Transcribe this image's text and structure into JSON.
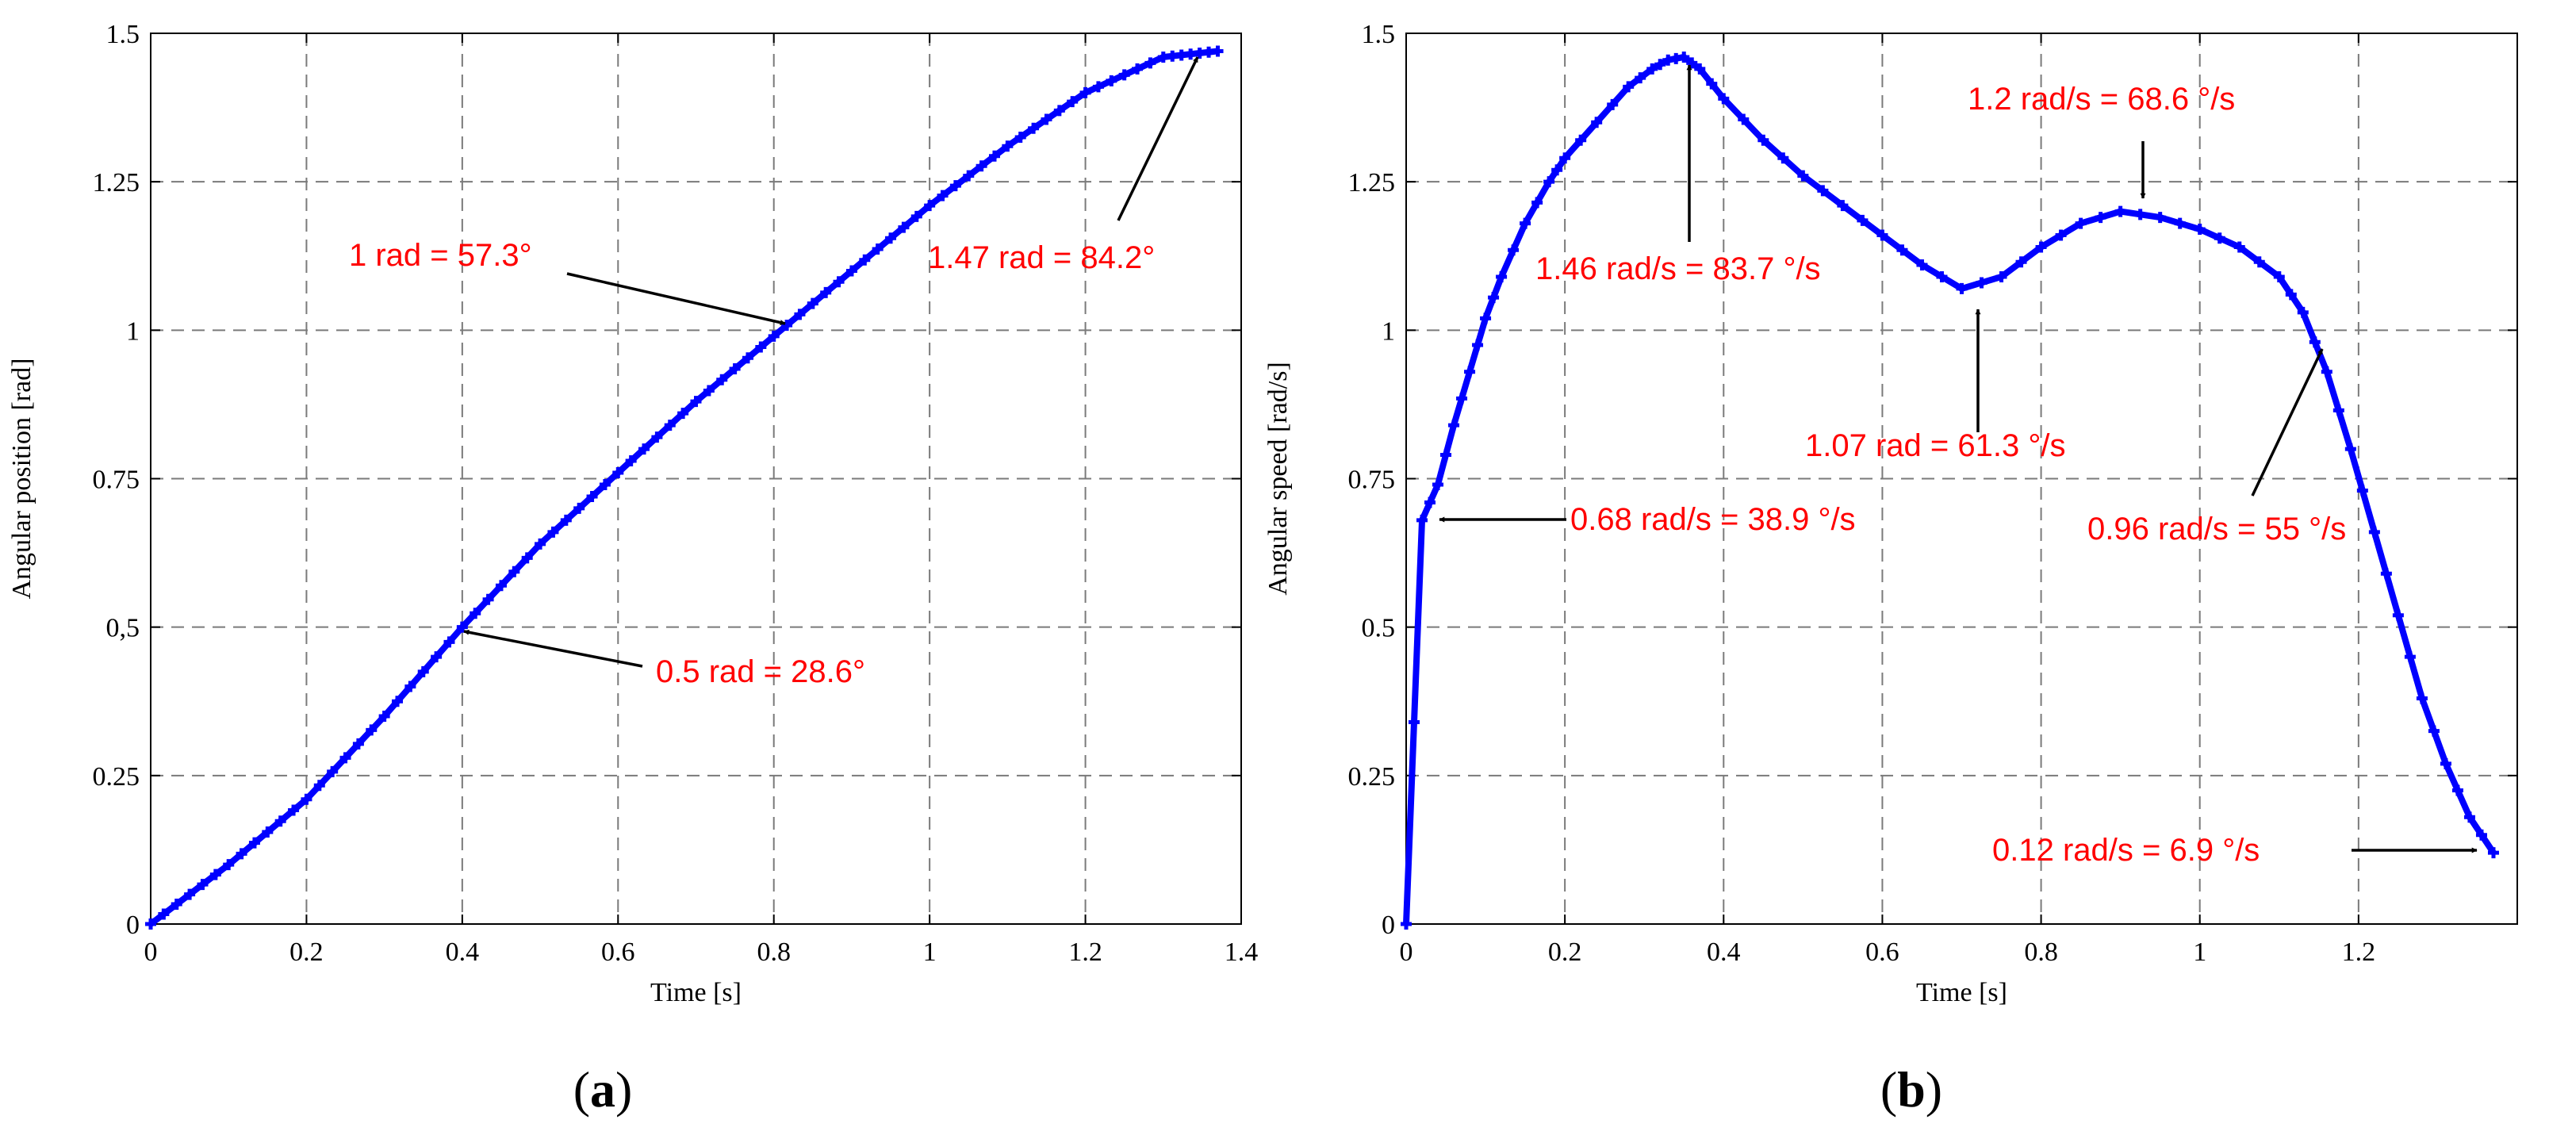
{
  "chart_data": [
    {
      "type": "line",
      "panel_label": "(a)",
      "xlabel": "Time [s]",
      "ylabel": "Angular position [rad]",
      "xlim": [
        0,
        1.4
      ],
      "ylim": [
        0,
        1.5
      ],
      "xticks": [
        0,
        0.2,
        0.4,
        0.6,
        0.8,
        1,
        1.2,
        1.4
      ],
      "xtick_labels": [
        "0",
        "0.2",
        "0.4",
        "0.6",
        "0.8",
        "1",
        "1.2",
        "1.4"
      ],
      "yticks": [
        0,
        0.25,
        0.5,
        0.75,
        1,
        1.25,
        1.5
      ],
      "ytick_labels": [
        "0",
        "0.25",
        "0,5",
        "0.75",
        "1",
        "1.25",
        "1.5"
      ],
      "grid": true,
      "series": [
        {
          "color": "#0000ff",
          "marker": "plus",
          "x": [
            0,
            0.1,
            0.2,
            0.3,
            0.4,
            0.5,
            0.6,
            0.7,
            0.8,
            0.9,
            1.0,
            1.1,
            1.2,
            1.3,
            1.37
          ],
          "y": [
            0,
            0.1,
            0.21,
            0.35,
            0.5,
            0.64,
            0.76,
            0.88,
            0.99,
            1.1,
            1.21,
            1.31,
            1.4,
            1.46,
            1.47
          ]
        }
      ],
      "annotations": [
        {
          "text": "1 rad = 57.3°",
          "x": 0.83,
          "y": 1.0
        },
        {
          "text": "1.47 rad = 84.2°",
          "x": 1.37,
          "y": 1.47
        },
        {
          "text": "0.5 rad = 28.6°",
          "x": 0.4,
          "y": 0.5
        }
      ]
    },
    {
      "type": "line",
      "panel_label": "(b)",
      "xlabel": "Time [s]",
      "ylabel": "Angular speed [rad/s]",
      "xlim": [
        0,
        1.4
      ],
      "ylim": [
        0,
        1.5
      ],
      "xticks": [
        0,
        0.2,
        0.4,
        0.6,
        0.8,
        1,
        1.2
      ],
      "xtick_labels": [
        "0",
        "0.2",
        "0.4",
        "0.6",
        "0.8",
        "1",
        "1.2"
      ],
      "yticks": [
        0,
        0.25,
        0.5,
        0.75,
        1,
        1.25,
        1.5
      ],
      "ytick_labels": [
        "0",
        "0.25",
        "0.5",
        "0.75",
        "1",
        "1.25",
        "1.5"
      ],
      "grid": true,
      "series": [
        {
          "color": "#0000ff",
          "marker": "plus",
          "x": [
            0,
            0.02,
            0.04,
            0.06,
            0.08,
            0.1,
            0.12,
            0.15,
            0.18,
            0.2,
            0.24,
            0.28,
            0.31,
            0.33,
            0.35,
            0.37,
            0.4,
            0.45,
            0.5,
            0.55,
            0.6,
            0.65,
            0.7,
            0.75,
            0.8,
            0.85,
            0.9,
            0.95,
            1.0,
            1.05,
            1.1,
            1.13,
            1.16,
            1.19,
            1.22,
            1.25,
            1.28,
            1.31,
            1.34,
            1.37
          ],
          "y": [
            0,
            0.68,
            0.74,
            0.84,
            0.93,
            1.02,
            1.09,
            1.18,
            1.25,
            1.29,
            1.35,
            1.41,
            1.44,
            1.455,
            1.46,
            1.44,
            1.39,
            1.32,
            1.26,
            1.21,
            1.16,
            1.11,
            1.07,
            1.09,
            1.14,
            1.18,
            1.2,
            1.19,
            1.17,
            1.14,
            1.09,
            1.03,
            0.93,
            0.8,
            0.66,
            0.52,
            0.38,
            0.27,
            0.18,
            0.12
          ]
        }
      ],
      "annotations": [
        {
          "text": "1.46 rad/s = 83.7 °/s",
          "x": 0.35,
          "y": 1.46
        },
        {
          "text": "1.2 rad/s = 68.6 °/s",
          "x": 0.91,
          "y": 1.2
        },
        {
          "text": "1.07 rad = 61.3 °/s",
          "x": 0.71,
          "y": 1.07
        },
        {
          "text": "0.68 rad/s = 38.9 °/s",
          "x": 0.02,
          "y": 0.68
        },
        {
          "text": "0.96 rad/s = 55 °/s",
          "x": 1.14,
          "y": 0.96
        },
        {
          "text": "0.12 rad/s = 6.9 °/s",
          "x": 1.37,
          "y": 0.12
        }
      ]
    }
  ]
}
